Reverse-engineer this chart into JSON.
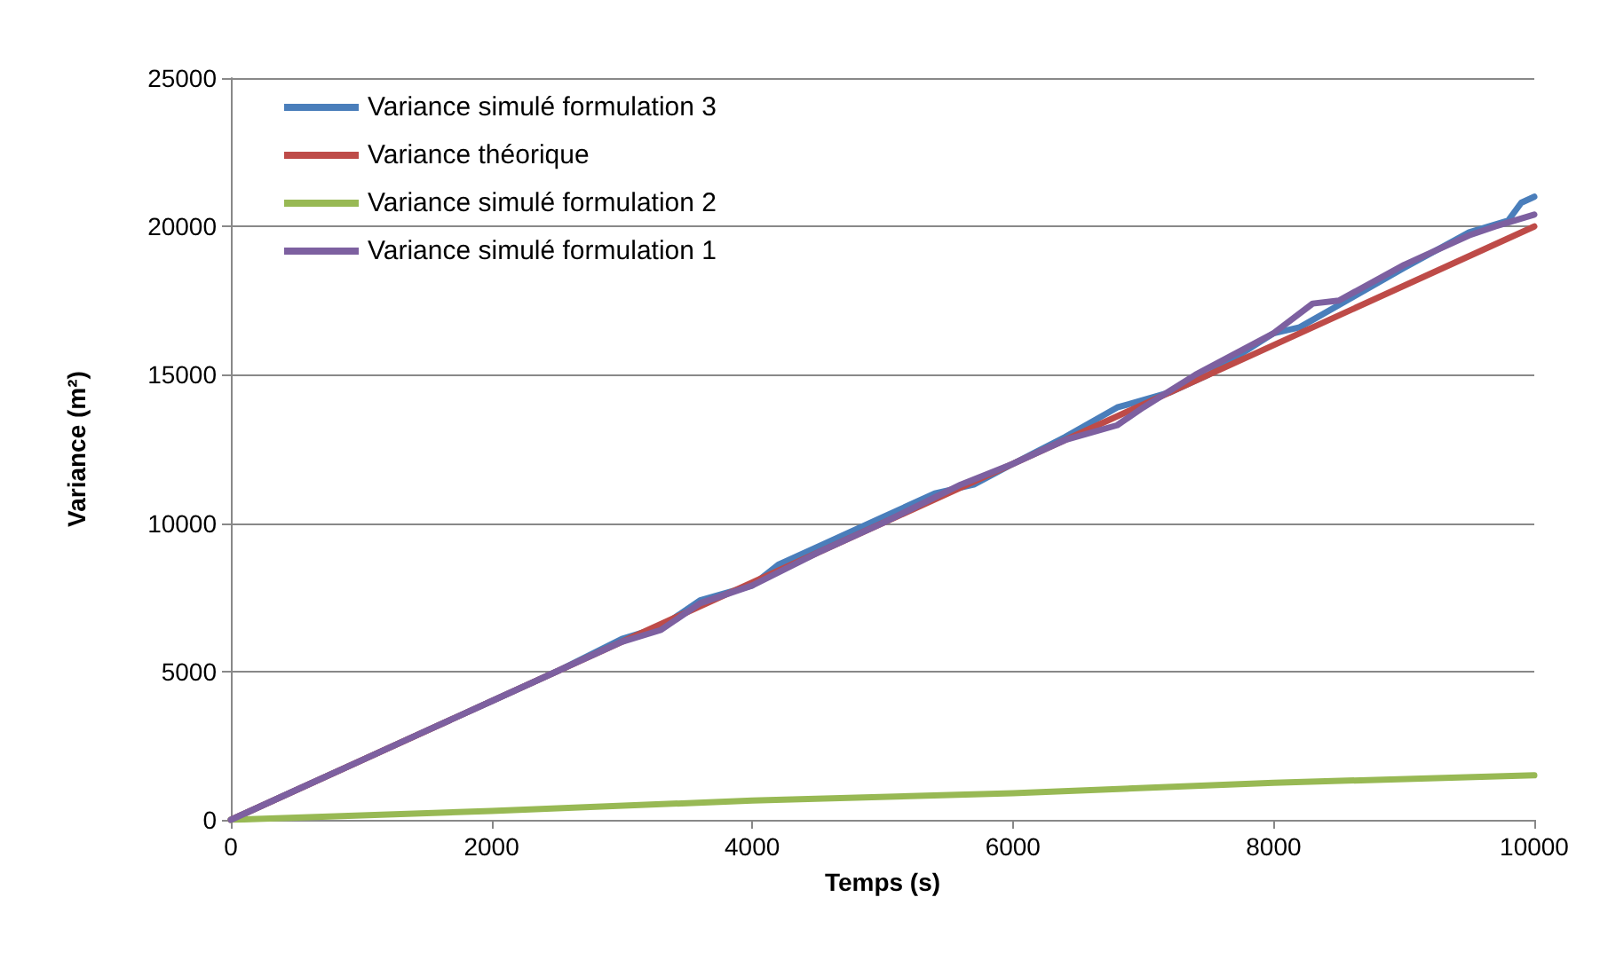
{
  "chart_data": {
    "type": "line",
    "xlabel": "Temps (s)",
    "ylabel": "Variance (m²)",
    "xlim": [
      0,
      10000
    ],
    "xticks": [
      0,
      2000,
      4000,
      6000,
      8000,
      10000
    ],
    "ylim": [
      0,
      25000
    ],
    "yticks": [
      0,
      5000,
      10000,
      15000,
      20000,
      25000
    ],
    "grid": "y",
    "legend": "top left",
    "marker": "none",
    "line_style": "solid",
    "series": [
      {
        "name": "Variance simulé formulation 3",
        "color": "#4a7ebb",
        "x": [
          0,
          500,
          1000,
          1500,
          2000,
          2500,
          3000,
          3300,
          3600,
          4000,
          4200,
          4500,
          5000,
          5400,
          5700,
          6000,
          6400,
          6800,
          7200,
          7500,
          8000,
          8200,
          8600,
          9000,
          9500,
          9800,
          9900,
          10000
        ],
        "values": [
          0,
          1000,
          2000,
          3000,
          4000,
          5000,
          6100,
          6500,
          7400,
          7900,
          8600,
          9200,
          10200,
          11000,
          11300,
          12000,
          12900,
          13900,
          14400,
          15000,
          16400,
          16600,
          17600,
          18600,
          19800,
          20200,
          20800,
          21000
        ]
      },
      {
        "name": "Variance théorique",
        "color": "#be4b48",
        "x": [
          0,
          10000
        ],
        "values": [
          0,
          20000
        ]
      },
      {
        "name": "Variance simulé formulation 2",
        "color": "#98b954",
        "x": [
          0,
          2000,
          4000,
          6000,
          8000,
          10000
        ],
        "values": [
          0,
          300,
          650,
          900,
          1250,
          1500
        ]
      },
      {
        "name": "Variance simulé formulation 1",
        "color": "#7d60a0",
        "x": [
          0,
          500,
          1000,
          1500,
          2000,
          2500,
          3000,
          3300,
          3600,
          4000,
          4500,
          5000,
          5600,
          6000,
          6400,
          6800,
          7000,
          7400,
          8000,
          8300,
          8500,
          9000,
          9500,
          9700,
          10000
        ],
        "values": [
          0,
          1000,
          2000,
          3000,
          4000,
          5000,
          6000,
          6400,
          7300,
          7900,
          9000,
          10000,
          11300,
          12000,
          12800,
          13300,
          13900,
          15000,
          16400,
          17400,
          17500,
          18700,
          19700,
          20000,
          20400
        ]
      }
    ]
  }
}
